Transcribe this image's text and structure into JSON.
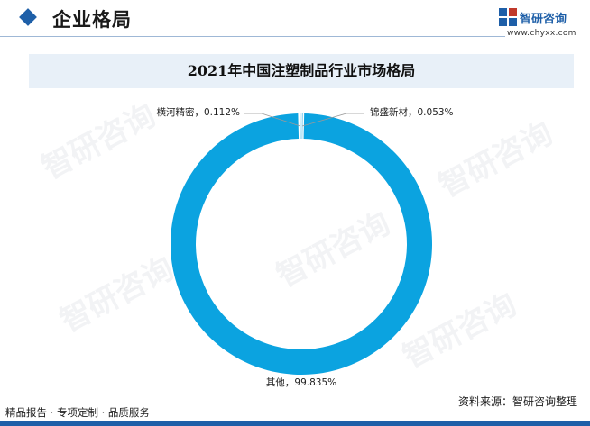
{
  "header": {
    "title": "企业格局",
    "logo_name": "智研咨询",
    "logo_url": "www.chyxx.com"
  },
  "watermark": {
    "text": "智研咨询"
  },
  "colors": {
    "ring": "#0ba3e0",
    "accent": "#1e5fa8",
    "title_bar": "#e8f0f8"
  },
  "chart_data": {
    "type": "pie",
    "title": "2021年中国注塑制品行业市场格局",
    "labels": [
      "锦盛新材",
      "横河精密",
      "其他"
    ],
    "values": [
      0.053,
      0.112,
      99.835
    ],
    "value_labels": [
      "0.053%",
      "0.112%",
      "99.835%"
    ],
    "separator": "，"
  },
  "footer": {
    "tagline": "精品报告 · 专项定制 · 品质服务",
    "source": "资料来源：智研咨询整理"
  }
}
